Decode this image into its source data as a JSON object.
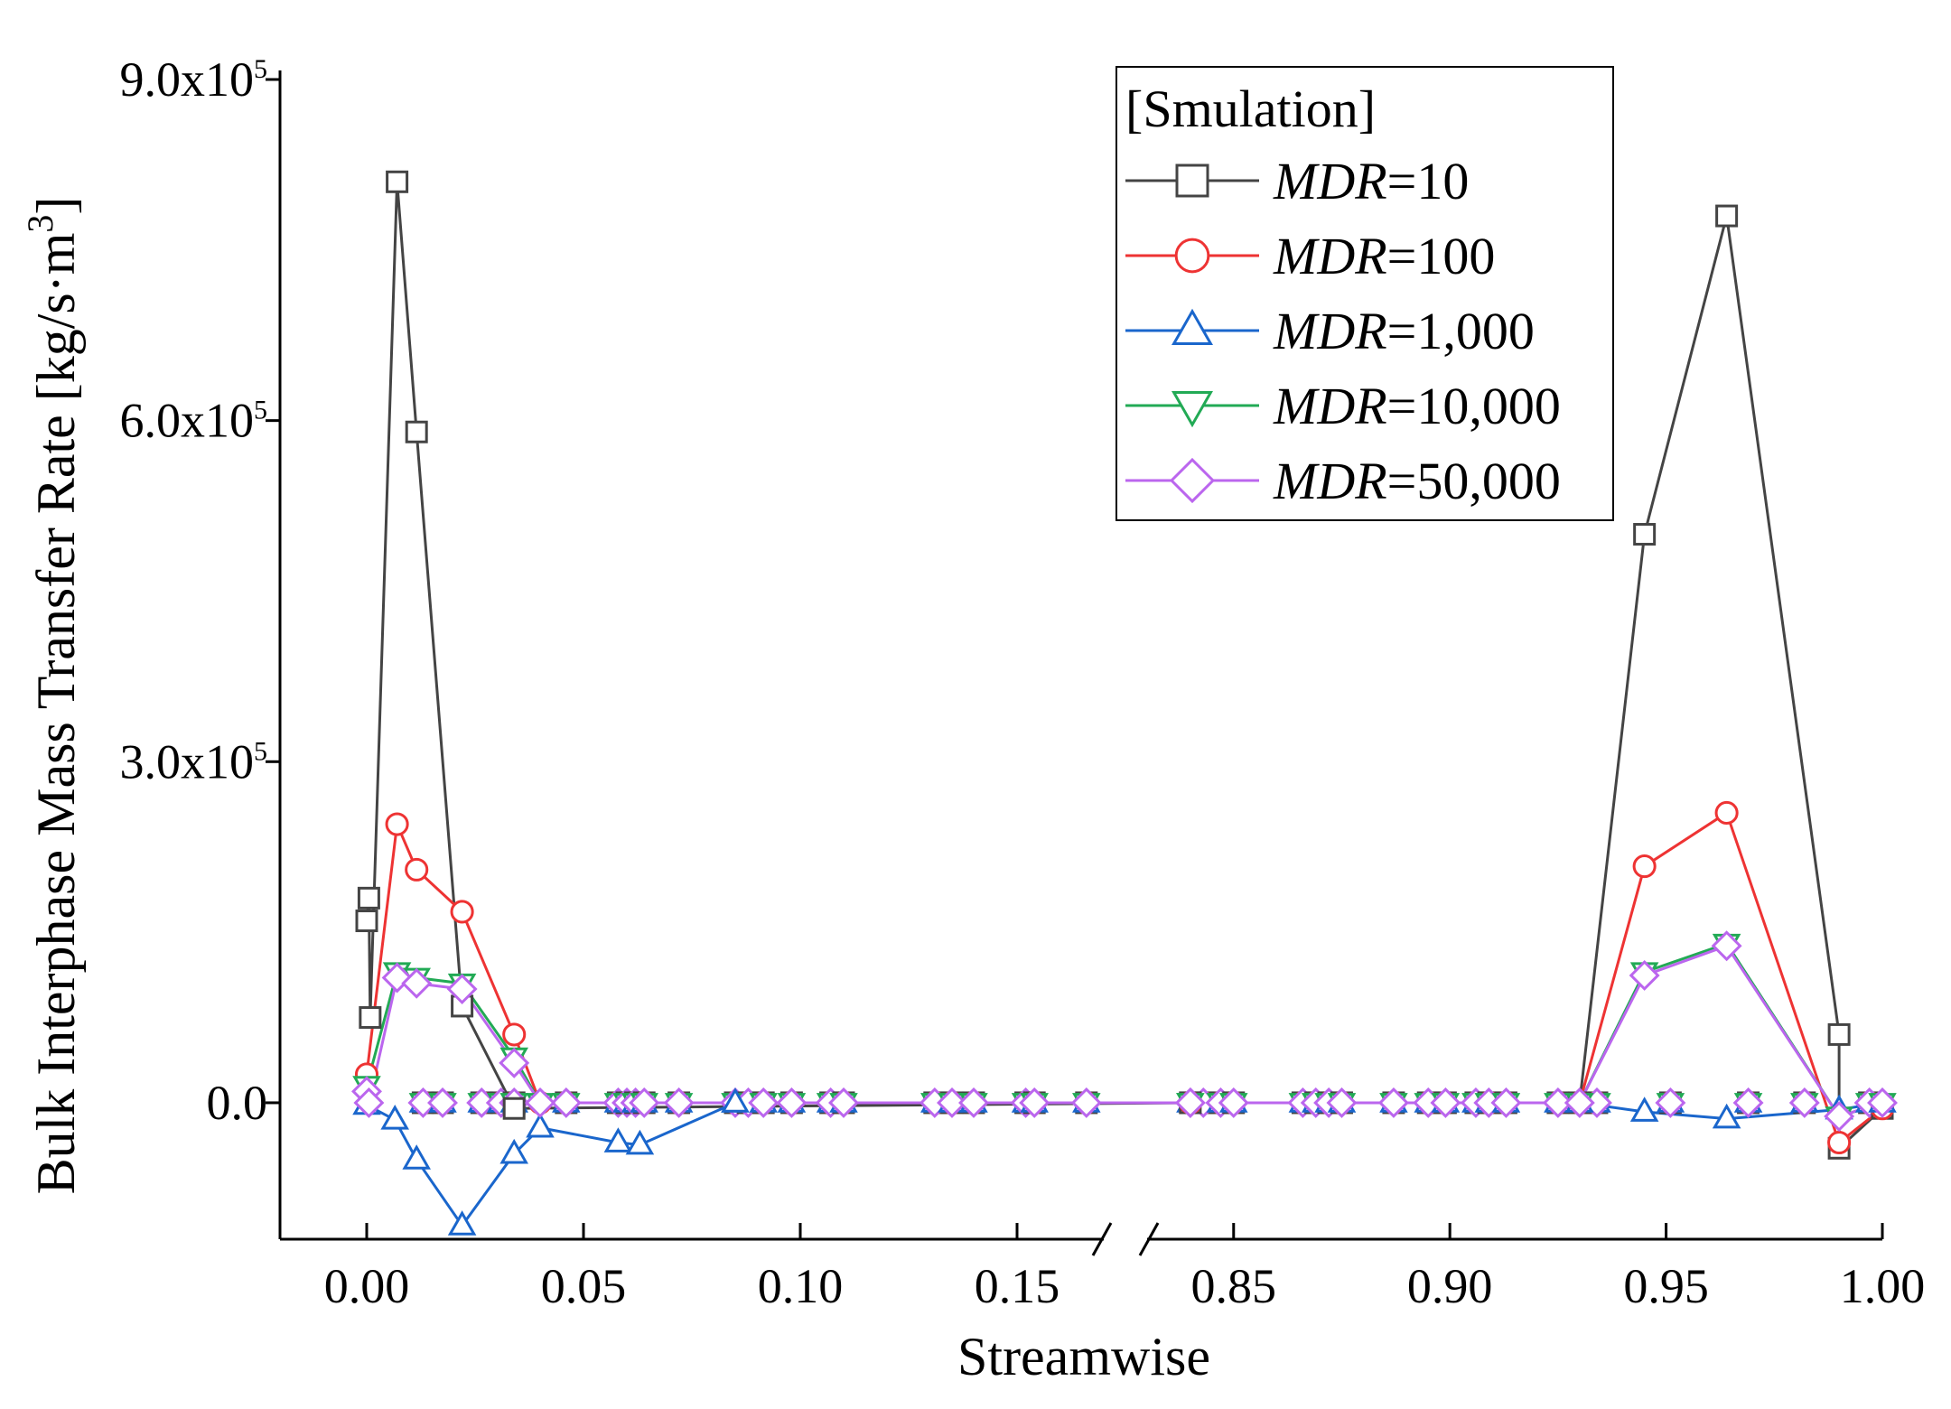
{
  "chart_data": {
    "type": "line",
    "title": "",
    "xlabel": "Streamwise",
    "ylabel": "Bulk Interphase Mass Transfer Rate [kg/s·m",
    "ylabel_sup": "3",
    "ylabel_end": "]",
    "x_axis_break": [
      0.17,
      0.83
    ],
    "xlim": [
      -0.02,
      1.0
    ],
    "ylim": [
      -120000,
      900000
    ],
    "x_ticks": [
      0.0,
      0.05,
      0.1,
      0.15,
      0.85,
      0.9,
      0.95,
      1.0
    ],
    "x_tick_labels": [
      "0.00",
      "0.05",
      "0.10",
      "0.15",
      "0.85",
      "0.90",
      "0.95",
      "1.00"
    ],
    "y_ticks": [
      0,
      300000,
      600000,
      900000
    ],
    "y_tick_labels": [
      {
        "mantissa": "0.0",
        "exp": ""
      },
      {
        "mantissa": "3.0x10",
        "exp": "5"
      },
      {
        "mantissa": "6.0x10",
        "exp": "5"
      },
      {
        "mantissa": "9.0x10",
        "exp": "5"
      }
    ],
    "legend": {
      "title": "[Smulation]",
      "position": "top-right"
    },
    "series": [
      {
        "name_prefix": "MDR",
        "name_suffix": "=10",
        "marker": "square",
        "color": "#444444",
        "x": [
          0.0,
          0.0005,
          0.0008,
          0.007,
          0.0115,
          0.022,
          0.034,
          0.84,
          0.93,
          0.945,
          0.964,
          0.99,
          0.99,
          1.0
        ],
        "y": [
          160000,
          180000,
          75000,
          810000,
          590000,
          85000,
          -5000,
          0,
          0,
          500000,
          780000,
          60000,
          -40000,
          -5000
        ]
      },
      {
        "name_prefix": "MDR",
        "name_suffix": "=100",
        "marker": "circle",
        "color": "#ee3333",
        "x": [
          0.0,
          0.007,
          0.0115,
          0.022,
          0.034,
          0.04,
          0.84,
          0.93,
          0.945,
          0.964,
          0.99,
          1.0
        ],
        "y": [
          25000,
          245000,
          205000,
          168000,
          60000,
          0,
          0,
          0,
          208000,
          255000,
          -35000,
          -5000
        ]
      },
      {
        "name_prefix": "MDR",
        "name_suffix": "=1,000",
        "marker": "triangle-up",
        "color": "#1a66cc",
        "x": [
          0.0,
          0.0065,
          0.0115,
          0.022,
          0.034,
          0.04,
          0.058,
          0.063,
          0.085,
          0.93,
          0.945,
          0.964,
          0.99,
          1.0
        ],
        "y": [
          -2000,
          -15000,
          -50000,
          -108000,
          -45000,
          -22000,
          -35000,
          -37000,
          0,
          0,
          -8000,
          -14000,
          -6000,
          0
        ]
      },
      {
        "name_prefix": "MDR",
        "name_suffix": "=10,000",
        "marker": "triangle-down",
        "color": "#22aa55",
        "x": [
          0.0,
          0.007,
          0.0115,
          0.022,
          0.034,
          0.04,
          0.84,
          0.93,
          0.945,
          0.964,
          0.99,
          1.0
        ],
        "y": [
          15000,
          115000,
          110000,
          105000,
          40000,
          0,
          0,
          0,
          115000,
          140000,
          -12000,
          0
        ]
      },
      {
        "name_prefix": "MDR",
        "name_suffix": "=50,000",
        "marker": "diamond",
        "color": "#bb66ee",
        "x": [
          0.0,
          0.0005,
          0.007,
          0.0115,
          0.022,
          0.034,
          0.04,
          0.84,
          0.93,
          0.945,
          0.964,
          0.99,
          1.0
        ],
        "y": [
          10000,
          0,
          110000,
          105000,
          100000,
          35000,
          0,
          0,
          0,
          112000,
          138000,
          -12000,
          0
        ]
      }
    ],
    "zero_markers_x": [
      0.013,
      0.0175,
      0.0265,
      0.031,
      0.034,
      0.046,
      0.058,
      0.06,
      0.062,
      0.064,
      0.072,
      0.085,
      0.088,
      0.0915,
      0.098,
      0.107,
      0.11,
      0.131,
      0.135,
      0.14,
      0.152,
      0.154,
      0.166,
      0.84,
      0.843,
      0.847,
      0.85,
      0.866,
      0.869,
      0.872,
      0.875,
      0.887,
      0.895,
      0.899,
      0.906,
      0.909,
      0.913,
      0.925,
      0.934,
      0.951,
      0.969,
      0.982,
      0.997
    ]
  }
}
